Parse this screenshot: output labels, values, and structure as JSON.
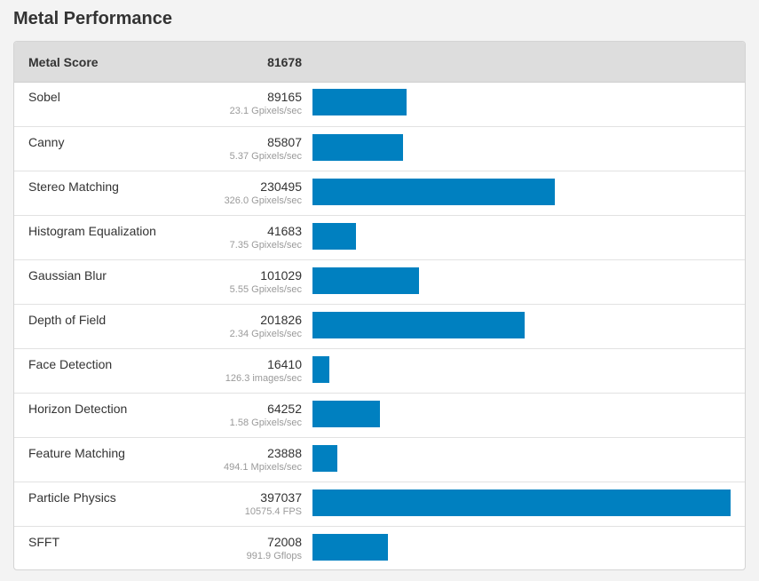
{
  "page": {
    "title": "Metal Performance"
  },
  "colors": {
    "bar": "#0080c0",
    "header_bg": "#dddddd",
    "rate_text": "#9a9a9a"
  },
  "chart_data": {
    "type": "bar",
    "orientation": "horizontal",
    "header": {
      "label": "Metal Score",
      "value": "81678"
    },
    "x_max": 397037,
    "rows": [
      {
        "name": "Sobel",
        "score": 89165,
        "score_text": "89165",
        "rate": "23.1 Gpixels/sec"
      },
      {
        "name": "Canny",
        "score": 85807,
        "score_text": "85807",
        "rate": "5.37 Gpixels/sec"
      },
      {
        "name": "Stereo Matching",
        "score": 230495,
        "score_text": "230495",
        "rate": "326.0 Gpixels/sec"
      },
      {
        "name": "Histogram Equalization",
        "score": 41683,
        "score_text": "41683",
        "rate": "7.35 Gpixels/sec"
      },
      {
        "name": "Gaussian Blur",
        "score": 101029,
        "score_text": "101029",
        "rate": "5.55 Gpixels/sec"
      },
      {
        "name": "Depth of Field",
        "score": 201826,
        "score_text": "201826",
        "rate": "2.34 Gpixels/sec"
      },
      {
        "name": "Face Detection",
        "score": 16410,
        "score_text": "16410",
        "rate": "126.3 images/sec"
      },
      {
        "name": "Horizon Detection",
        "score": 64252,
        "score_text": "64252",
        "rate": "1.58 Gpixels/sec"
      },
      {
        "name": "Feature Matching",
        "score": 23888,
        "score_text": "23888",
        "rate": "494.1 Mpixels/sec"
      },
      {
        "name": "Particle Physics",
        "score": 397037,
        "score_text": "397037",
        "rate": "10575.4 FPS"
      },
      {
        "name": "SFFT",
        "score": 72008,
        "score_text": "72008",
        "rate": "991.9 Gflops"
      }
    ]
  }
}
